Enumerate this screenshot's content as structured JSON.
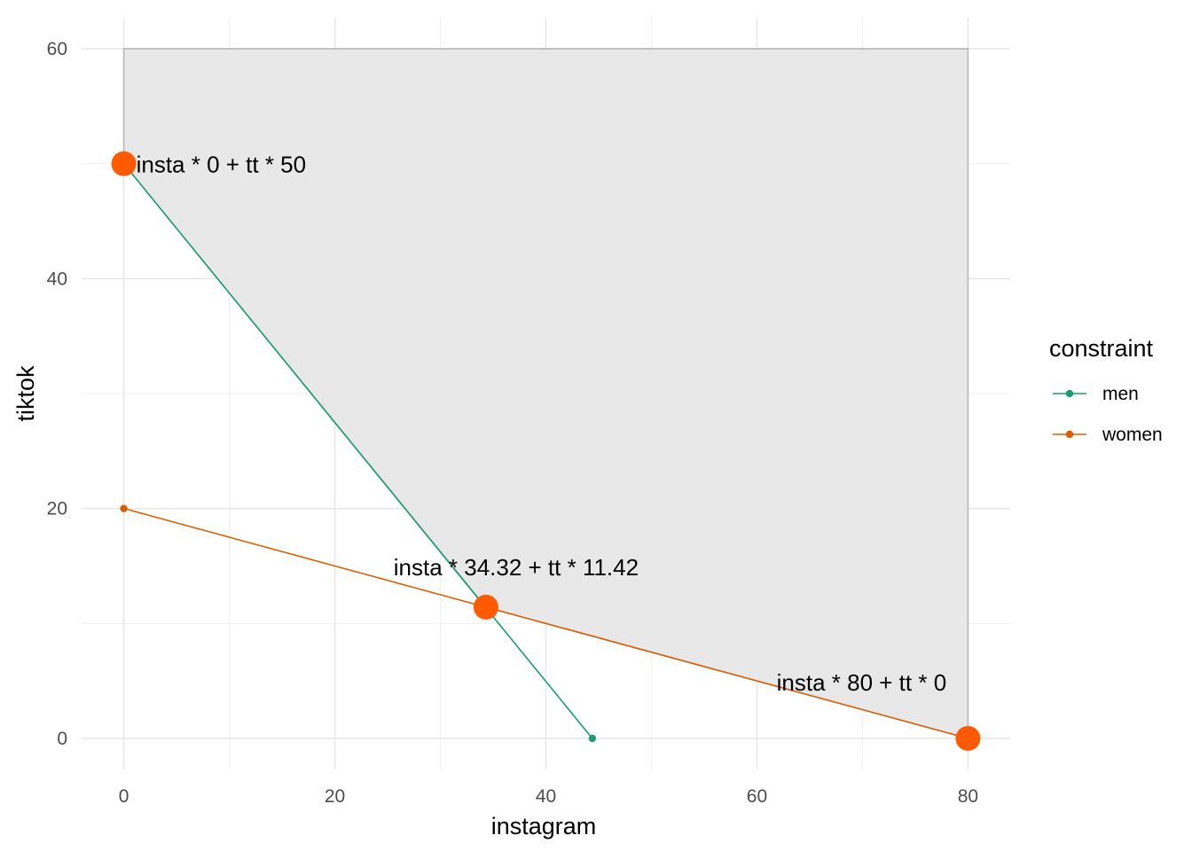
{
  "chart_data": {
    "type": "line",
    "xlabel": "instagram",
    "ylabel": "tiktok",
    "xlim": [
      -4,
      84
    ],
    "ylim": [
      -2.7,
      62.7
    ],
    "x_ticks": [
      0,
      20,
      40,
      60,
      80
    ],
    "y_ticks": [
      0,
      20,
      40,
      60
    ],
    "grid": true,
    "feasible_region": {
      "polygon": [
        [
          0,
          60
        ],
        [
          80,
          60
        ],
        [
          80,
          0
        ],
        [
          34.32,
          11.42
        ],
        [
          0,
          50
        ]
      ],
      "fill": "#e8e8e8",
      "stroke": "#b3b3b3"
    },
    "series": [
      {
        "name": "men",
        "color": "#1b9e77",
        "x": [
          0,
          44.4
        ],
        "y": [
          50,
          0
        ]
      },
      {
        "name": "women",
        "color": "#d95f02",
        "x": [
          0,
          80
        ],
        "y": [
          20,
          0
        ]
      }
    ],
    "highlight_points": [
      {
        "x": 0,
        "y": 50,
        "label": "insta * 0 + tt * 50"
      },
      {
        "x": 34.32,
        "y": 11.42,
        "label": "insta * 34.32 + tt * 11.42"
      },
      {
        "x": 80,
        "y": 0,
        "label": "insta * 80 + tt * 0"
      }
    ],
    "highlight_color": "#ff5a00",
    "legend": {
      "title": "constraint",
      "position": "right"
    }
  }
}
